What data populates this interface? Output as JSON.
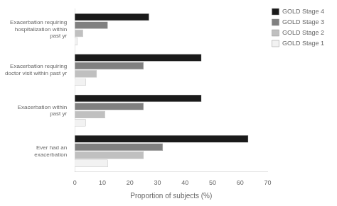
{
  "chart_data": {
    "type": "bar",
    "orientation": "horizontal",
    "categories": [
      "Exacerbation requiring\nhospitalization within\npast yr",
      "Exacerbation requiring\ndoctor visit within past yr",
      "Exacerbation within\npast yr",
      "Ever had an\nexacerbation"
    ],
    "series": [
      {
        "name": "GOLD Stage 4",
        "color": "#1a1a1a",
        "values": [
          27,
          46,
          46,
          63
        ]
      },
      {
        "name": "GOLD Stage 3",
        "color": "#808080",
        "values": [
          12,
          25,
          25,
          32
        ]
      },
      {
        "name": "GOLD Stage 2",
        "color": "#c0c0c0",
        "values": [
          3,
          8,
          11,
          25
        ]
      },
      {
        "name": "GOLD Stage 1",
        "color": "#f2f2f2",
        "values": [
          1,
          4,
          4,
          12
        ]
      }
    ],
    "xlabel": "Proportion of subjects (%)",
    "xlim": [
      0,
      70
    ],
    "xticks": [
      0,
      10,
      20,
      30,
      40,
      50,
      60,
      70
    ],
    "grid": false,
    "legend": "upper right"
  }
}
